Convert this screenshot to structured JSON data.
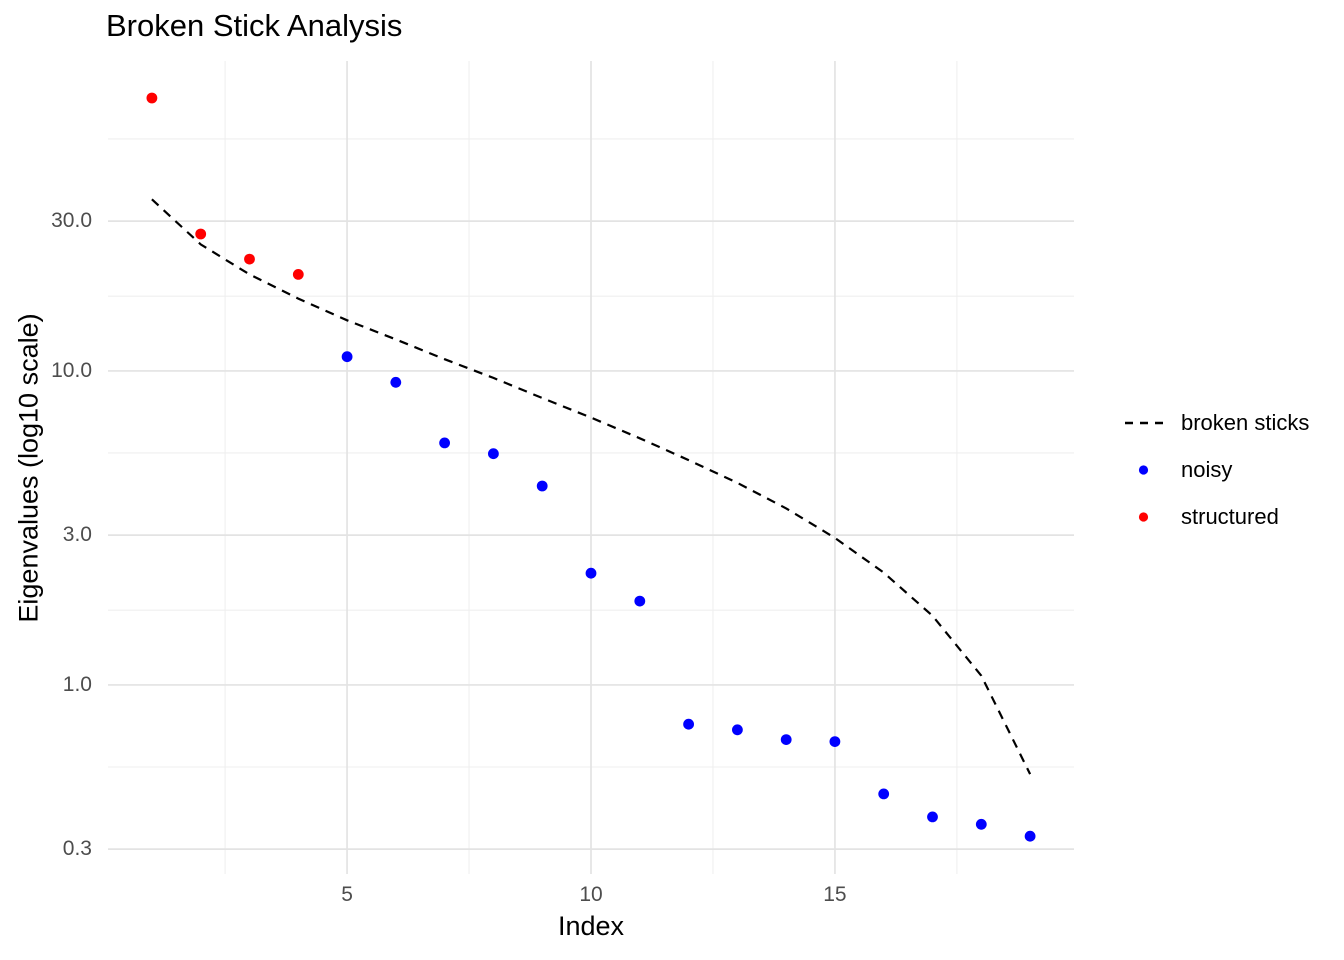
{
  "chart_data": {
    "type": "scatter",
    "title": "Broken Stick Analysis",
    "xlabel": "Index",
    "ylabel": "Eigenvalues (log10 scale)",
    "x_scale": "linear",
    "y_scale": "log10",
    "grid": true,
    "legend_position": "right",
    "x_domain": [
      0.1,
      19.9
    ],
    "y_domain_log10": [
      -0.602,
      1.987
    ],
    "x_ticks": [
      5,
      10,
      15
    ],
    "x_minor_ticks": [
      2.5,
      7.5,
      12.5,
      17.5
    ],
    "y_ticks": [
      30.0,
      10.0,
      3.0,
      1.0,
      0.3
    ],
    "y_tick_labels": [
      "30.0",
      "10.0",
      "3.0",
      "1.0",
      "0.3"
    ],
    "y_minor_ticks": [
      54.8,
      17.3,
      5.48,
      1.73,
      0.548
    ],
    "series": [
      {
        "name": "broken sticks",
        "type": "line",
        "style": "dashed",
        "color": "#000000",
        "x": [
          1,
          2,
          3,
          4,
          5,
          6,
          7,
          8,
          9,
          10,
          11,
          12,
          13,
          14,
          15,
          16,
          17,
          18,
          19
        ],
        "values": [
          35.2,
          25.3,
          20.3,
          17.0,
          14.5,
          12.6,
          10.9,
          9.5,
          8.2,
          7.1,
          6.1,
          5.2,
          4.4,
          3.65,
          2.94,
          2.28,
          1.66,
          1.07,
          0.52
        ]
      },
      {
        "name": "structured",
        "type": "points",
        "color": "#FF0000",
        "x": [
          1,
          2,
          3,
          4
        ],
        "values": [
          74.0,
          27.3,
          22.7,
          20.3
        ]
      },
      {
        "name": "noisy",
        "type": "points",
        "color": "#0000FF",
        "x": [
          5,
          6,
          7,
          8,
          9,
          10,
          11,
          12,
          13,
          14,
          15,
          16,
          17,
          18,
          19
        ],
        "values": [
          11.1,
          9.2,
          5.9,
          5.45,
          4.3,
          2.27,
          1.85,
          0.75,
          0.72,
          0.67,
          0.66,
          0.45,
          0.38,
          0.36,
          0.33
        ]
      }
    ],
    "legend": [
      {
        "label": "broken sticks",
        "key": "dashed-line",
        "color": "#000000"
      },
      {
        "label": "noisy",
        "key": "point",
        "color": "#0000FF"
      },
      {
        "label": "structured",
        "key": "point",
        "color": "#FF0000"
      }
    ],
    "style": {
      "background": "#FFFFFF",
      "grid_major_color": "#E3E3E3",
      "grid_minor_color": "#EFEFEF",
      "tick_label_color": "#4D4D4D",
      "text_color": "#000000"
    }
  }
}
